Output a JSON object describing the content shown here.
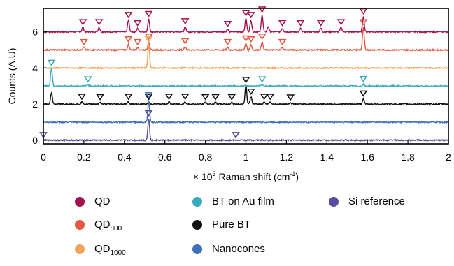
{
  "chart_data": {
    "type": "line",
    "xlabel_prefix": "× 10",
    "xlabel_exp": "3",
    "xlabel_main": " Raman shift (cm",
    "xlabel_unit_exp": "-1",
    "xlabel_suffix": ")",
    "ylabel": "Counts (A.U)",
    "xlim": [
      0,
      2
    ],
    "ylim": [
      -0.2,
      7.3
    ],
    "x_ticks": [
      0,
      0.2,
      0.4,
      0.6,
      0.8,
      1,
      1.2,
      1.4,
      1.6,
      1.8,
      2
    ],
    "x_tick_labels": [
      "0",
      "0.2",
      "0.4",
      "0.6",
      "0.8",
      "1",
      "1.2",
      "1.4",
      "1.6",
      "1.8",
      "2"
    ],
    "y_ticks": [
      0,
      2,
      4,
      6
    ],
    "y_tick_labels": [
      "0",
      "2",
      "4",
      "6"
    ],
    "grid": false,
    "legend_position": "below",
    "series": [
      {
        "label": "QD",
        "sub": "",
        "color": "#a3124f",
        "baseline": 6.0,
        "peaks": [
          [
            0.195,
            0.25
          ],
          [
            0.275,
            0.25
          ],
          [
            0.42,
            0.65
          ],
          [
            0.465,
            0.2
          ],
          [
            0.52,
            0.7
          ],
          [
            0.7,
            0.3
          ],
          [
            0.91,
            0.15
          ],
          [
            1.0,
            0.75
          ],
          [
            1.025,
            0.65
          ],
          [
            1.08,
            0.95
          ],
          [
            1.11,
            0.3
          ],
          [
            1.18,
            0.2
          ],
          [
            1.27,
            0.2
          ],
          [
            1.37,
            0.2
          ],
          [
            1.47,
            0.25
          ],
          [
            1.58,
            0.85
          ]
        ],
        "markers": [
          0.195,
          0.275,
          0.42,
          0.465,
          0.52,
          0.7,
          0.91,
          1.0,
          1.025,
          1.08,
          1.18,
          1.27,
          1.37,
          1.47,
          1.58
        ]
      },
      {
        "label": "QD",
        "sub": "800",
        "color": "#e4573f",
        "baseline": 5.0,
        "peaks": [
          [
            0.2,
            0.15
          ],
          [
            0.42,
            0.3
          ],
          [
            0.465,
            0.15
          ],
          [
            0.52,
            0.45
          ],
          [
            0.7,
            0.2
          ],
          [
            0.91,
            0.15
          ],
          [
            1.0,
            0.35
          ],
          [
            1.025,
            0.3
          ],
          [
            1.08,
            0.45
          ],
          [
            1.18,
            0.15
          ],
          [
            1.58,
            1.25
          ]
        ],
        "markers": [
          0.2,
          0.42,
          0.465,
          0.52,
          0.7,
          0.91,
          1.0,
          1.025,
          1.08,
          1.18,
          1.58
        ]
      },
      {
        "label": "QD",
        "sub": "1000",
        "color": "#f0a45c",
        "baseline": 4.0,
        "peaks": [
          [
            0.52,
            1.3
          ]
        ],
        "markers": [
          0.52
        ]
      },
      {
        "label": "BT on Au film",
        "sub": "",
        "color": "#3aabbd",
        "baseline": 3.0,
        "peaks": [
          [
            0.04,
            1.0
          ],
          [
            0.22,
            0.08
          ],
          [
            1.08,
            0.08
          ],
          [
            1.58,
            0.1
          ]
        ],
        "markers": [
          0.04,
          0.22,
          1.08,
          1.58
        ]
      },
      {
        "label": "Pure BT",
        "sub": "",
        "color": "#111111",
        "baseline": 2.0,
        "peaks": [
          [
            0.04,
            0.65
          ],
          [
            0.19,
            0.12
          ],
          [
            0.28,
            0.1
          ],
          [
            0.42,
            0.12
          ],
          [
            0.52,
            0.1
          ],
          [
            0.62,
            0.12
          ],
          [
            0.7,
            0.12
          ],
          [
            0.8,
            0.1
          ],
          [
            0.85,
            0.1
          ],
          [
            0.93,
            0.1
          ],
          [
            1.0,
            1.05
          ],
          [
            1.025,
            0.4
          ],
          [
            1.09,
            0.12
          ],
          [
            1.12,
            0.12
          ],
          [
            1.22,
            0.08
          ],
          [
            1.58,
            0.3
          ]
        ],
        "markers": [
          0.19,
          0.28,
          0.42,
          0.52,
          0.62,
          0.7,
          0.8,
          0.85,
          0.93,
          1.0,
          1.025,
          1.09,
          1.12,
          1.22,
          1.58
        ]
      },
      {
        "label": "Nanocones",
        "sub": "",
        "color": "#3f6fb8",
        "baseline": 1.0,
        "peaks": [
          [
            0.52,
            1.2
          ]
        ],
        "markers": [
          0.52
        ]
      },
      {
        "label": "Si reference",
        "sub": "",
        "color": "#5b4b9c",
        "baseline": 0.0,
        "peaks": [
          [
            0.52,
            1.2
          ]
        ],
        "markers": [
          0.0,
          0.52,
          0.95
        ]
      }
    ]
  }
}
